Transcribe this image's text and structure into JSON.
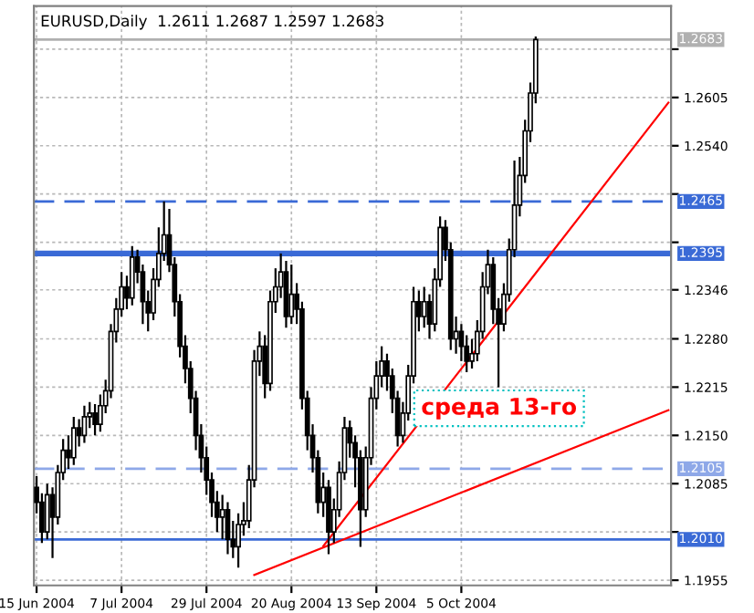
{
  "chart_data": {
    "type": "candlestick",
    "title": "EURUSD,Daily  1.2611 1.2687 1.2597 1.2683",
    "categories": [
      "15 Jun 2004",
      null,
      null,
      null,
      null,
      null,
      null,
      null,
      null,
      null,
      null,
      null,
      null,
      null,
      null,
      null,
      "7 Jul 2004",
      null,
      null,
      null,
      null,
      null,
      null,
      null,
      null,
      null,
      null,
      null,
      null,
      null,
      null,
      null,
      "29 Jul 2004",
      null,
      null,
      null,
      null,
      null,
      null,
      null,
      null,
      null,
      null,
      null,
      null,
      null,
      null,
      null,
      "20 Aug 2004",
      null,
      null,
      null,
      null,
      null,
      null,
      null,
      null,
      null,
      null,
      null,
      null,
      null,
      null,
      null,
      "13 Sep 2004",
      null,
      null,
      null,
      null,
      null,
      null,
      null,
      null,
      null,
      null,
      null,
      null,
      null,
      null,
      null,
      "5 Oct 2004",
      null,
      null,
      null,
      null,
      null,
      null,
      null,
      null,
      null,
      null,
      null,
      null,
      null,
      null,
      null,
      null,
      null,
      null,
      null,
      null,
      null,
      null,
      null,
      null,
      null,
      null,
      null,
      null,
      null,
      null,
      null,
      null,
      null,
      null,
      null,
      null,
      null,
      null,
      null
    ],
    "ohlc": [
      [
        1.208,
        1.2095,
        1.2045,
        1.206
      ],
      [
        1.206,
        1.2072,
        1.2005,
        1.202
      ],
      [
        1.202,
        1.2085,
        1.201,
        1.207
      ],
      [
        1.207,
        1.208,
        1.1985,
        1.204
      ],
      [
        1.204,
        1.211,
        1.203,
        1.21
      ],
      [
        1.21,
        1.2145,
        1.209,
        1.213
      ],
      [
        1.213,
        1.215,
        1.2105,
        1.212
      ],
      [
        1.212,
        1.2175,
        1.211,
        1.216
      ],
      [
        1.216,
        1.2172,
        1.2135,
        1.215
      ],
      [
        1.215,
        1.219,
        1.214,
        1.2175
      ],
      [
        1.2175,
        1.2195,
        1.216,
        1.218
      ],
      [
        1.218,
        1.2192,
        1.215,
        1.2165
      ],
      [
        1.2165,
        1.2205,
        1.2155,
        1.219
      ],
      [
        1.219,
        1.2225,
        1.218,
        1.221
      ],
      [
        1.221,
        1.23,
        1.22,
        1.229
      ],
      [
        1.229,
        1.2335,
        1.2275,
        1.232
      ],
      [
        1.232,
        1.237,
        1.231,
        1.235
      ],
      [
        1.235,
        1.2365,
        1.232,
        1.2335
      ],
      [
        1.2335,
        1.2405,
        1.2325,
        1.239
      ],
      [
        1.239,
        1.24,
        1.2355,
        1.237
      ],
      [
        1.237,
        1.238,
        1.23,
        1.233
      ],
      [
        1.233,
        1.2345,
        1.229,
        1.2315
      ],
      [
        1.2315,
        1.2375,
        1.2305,
        1.236
      ],
      [
        1.236,
        1.243,
        1.235,
        1.2395
      ],
      [
        1.2395,
        1.2465,
        1.2385,
        1.242
      ],
      [
        1.242,
        1.2455,
        1.237,
        1.238
      ],
      [
        1.238,
        1.239,
        1.231,
        1.233
      ],
      [
        1.233,
        1.234,
        1.2255,
        1.227
      ],
      [
        1.227,
        1.2285,
        1.222,
        1.224
      ],
      [
        1.224,
        1.225,
        1.218,
        1.22
      ],
      [
        1.22,
        1.221,
        1.213,
        1.215
      ],
      [
        1.215,
        1.2165,
        1.21,
        1.212
      ],
      [
        1.212,
        1.2135,
        1.207,
        1.209
      ],
      [
        1.209,
        1.21,
        1.204,
        1.206
      ],
      [
        1.206,
        1.2075,
        1.202,
        1.204
      ],
      [
        1.204,
        1.207,
        1.201,
        1.205
      ],
      [
        1.205,
        1.206,
        1.199,
        1.201
      ],
      [
        1.201,
        1.2035,
        1.1985,
        1.2
      ],
      [
        1.2,
        1.2045,
        1.1972,
        1.203
      ],
      [
        1.203,
        1.206,
        1.2015,
        1.2035
      ],
      [
        1.2035,
        1.211,
        1.2025,
        1.209
      ],
      [
        1.209,
        1.2265,
        1.208,
        1.225
      ],
      [
        1.225,
        1.229,
        1.223,
        1.227
      ],
      [
        1.227,
        1.2285,
        1.22,
        1.222
      ],
      [
        1.222,
        1.2345,
        1.221,
        1.233
      ],
      [
        1.233,
        1.2375,
        1.2315,
        1.235
      ],
      [
        1.235,
        1.2395,
        1.2335,
        1.237
      ],
      [
        1.237,
        1.2385,
        1.2295,
        1.231
      ],
      [
        1.231,
        1.238,
        1.23,
        1.234
      ],
      [
        1.234,
        1.2355,
        1.23,
        1.232
      ],
      [
        1.232,
        1.233,
        1.2185,
        1.22
      ],
      [
        1.22,
        1.221,
        1.213,
        1.215
      ],
      [
        1.215,
        1.2165,
        1.21,
        1.212
      ],
      [
        1.212,
        1.213,
        1.2045,
        1.206
      ],
      [
        1.206,
        1.21,
        1.204,
        1.208
      ],
      [
        1.208,
        1.209,
        1.199,
        1.202
      ],
      [
        1.202,
        1.2065,
        1.2005,
        1.205
      ],
      [
        1.205,
        1.2115,
        1.204,
        1.21
      ],
      [
        1.21,
        1.2175,
        1.209,
        1.216
      ],
      [
        1.216,
        1.217,
        1.212,
        1.214
      ],
      [
        1.214,
        1.215,
        1.208,
        1.212
      ],
      [
        1.212,
        1.213,
        1.2,
        1.205
      ],
      [
        1.205,
        1.2135,
        1.204,
        1.212
      ],
      [
        1.212,
        1.2215,
        1.211,
        1.22
      ],
      [
        1.22,
        1.225,
        1.2185,
        1.223
      ],
      [
        1.223,
        1.227,
        1.2215,
        1.225
      ],
      [
        1.225,
        1.226,
        1.221,
        1.223
      ],
      [
        1.223,
        1.224,
        1.218,
        1.22
      ],
      [
        1.22,
        1.221,
        1.2135,
        1.215
      ],
      [
        1.215,
        1.2195,
        1.214,
        1.218
      ],
      [
        1.218,
        1.2245,
        1.217,
        1.223
      ],
      [
        1.223,
        1.235,
        1.222,
        1.233
      ],
      [
        1.233,
        1.2345,
        1.229,
        1.231
      ],
      [
        1.231,
        1.235,
        1.2295,
        1.233
      ],
      [
        1.233,
        1.234,
        1.228,
        1.23
      ],
      [
        1.23,
        1.2375,
        1.229,
        1.236
      ],
      [
        1.236,
        1.2445,
        1.235,
        1.243
      ],
      [
        1.243,
        1.244,
        1.2385,
        1.24
      ],
      [
        1.24,
        1.241,
        1.2265,
        1.228
      ],
      [
        1.228,
        1.231,
        1.226,
        1.229
      ],
      [
        1.229,
        1.23,
        1.225,
        1.227
      ],
      [
        1.227,
        1.2285,
        1.2235,
        1.225
      ],
      [
        1.225,
        1.228,
        1.224,
        1.226
      ],
      [
        1.226,
        1.2305,
        1.225,
        1.229
      ],
      [
        1.229,
        1.237,
        1.228,
        1.235
      ],
      [
        1.235,
        1.24,
        1.234,
        1.238
      ],
      [
        1.238,
        1.239,
        1.23,
        1.232
      ],
      [
        1.232,
        1.2335,
        1.2215,
        1.23
      ],
      [
        1.23,
        1.2355,
        1.229,
        1.234
      ],
      [
        1.234,
        1.2415,
        1.233,
        1.24
      ],
      [
        1.24,
        1.252,
        1.239,
        1.246
      ],
      [
        1.246,
        1.2525,
        1.2445,
        1.25
      ],
      [
        1.25,
        1.2575,
        1.249,
        1.256
      ],
      [
        1.256,
        1.2625,
        1.2545,
        1.2611
      ],
      [
        1.2611,
        1.2687,
        1.2597,
        1.2683
      ],
      null,
      null,
      null,
      null,
      null,
      null,
      null,
      null,
      null,
      null,
      null,
      null,
      null,
      null,
      null,
      null,
      null,
      null,
      null,
      null,
      null,
      null,
      null,
      null,
      null
    ],
    "series": [
      {
        "type": "line",
        "color": "#ff0000",
        "values": [
          null,
          null,
          null,
          null,
          null,
          null,
          null,
          null,
          null,
          null,
          null,
          null,
          null,
          null,
          null,
          null,
          null,
          null,
          null,
          null,
          null,
          null,
          null,
          null,
          null,
          null,
          null,
          null,
          null,
          null,
          null,
          null,
          null,
          null,
          null,
          null,
          null,
          null,
          null,
          null,
          null,
          1.1962,
          null,
          null,
          null,
          null,
          null,
          null,
          null,
          null,
          null,
          null,
          null,
          null,
          null,
          null,
          null,
          null,
          null,
          null,
          null,
          null,
          null,
          null,
          null,
          null,
          null,
          null,
          null,
          null,
          null,
          null,
          null,
          null,
          null,
          null,
          null,
          null,
          null,
          null,
          null,
          null,
          null,
          null,
          null,
          null,
          null,
          null,
          null,
          null,
          null,
          null,
          null,
          null,
          null,
          null,
          null,
          null,
          null,
          null,
          null,
          null,
          null,
          null,
          null,
          null,
          null,
          null,
          null,
          null,
          null,
          null,
          null,
          null,
          null,
          null,
          null,
          null,
          null,
          1.2184
        ]
      },
      {
        "type": "line",
        "color": "#ff0000",
        "values": [
          null,
          null,
          null,
          null,
          null,
          null,
          null,
          null,
          null,
          null,
          null,
          null,
          null,
          null,
          null,
          null,
          null,
          null,
          null,
          null,
          null,
          null,
          null,
          null,
          null,
          null,
          null,
          null,
          null,
          null,
          null,
          null,
          null,
          null,
          null,
          null,
          null,
          null,
          null,
          null,
          null,
          null,
          null,
          null,
          null,
          null,
          null,
          null,
          null,
          null,
          null,
          null,
          null,
          null,
          1.2001,
          null,
          null,
          null,
          null,
          null,
          null,
          null,
          null,
          null,
          null,
          null,
          null,
          null,
          null,
          null,
          null,
          null,
          null,
          null,
          null,
          null,
          null,
          null,
          null,
          null,
          null,
          null,
          null,
          null,
          null,
          null,
          null,
          null,
          null,
          null,
          null,
          null,
          null,
          null,
          null,
          null,
          null,
          null,
          null,
          null,
          null,
          null,
          null,
          null,
          null,
          null,
          null,
          null,
          null,
          null,
          null,
          null,
          null,
          null,
          null,
          null,
          null,
          null,
          null,
          1.2598
        ]
      }
    ],
    "ref_lines": [
      {
        "axis": "y",
        "value": 1.2683,
        "label": "1.2683",
        "color": "#b0b0b0",
        "line_style": "solid"
      },
      {
        "axis": "y",
        "value": 1.2465,
        "label": "1.2465",
        "color": "#3a6ad6",
        "line_style": "dashed"
      },
      {
        "axis": "y",
        "value": 1.2395,
        "label": "1.2395",
        "color": "#3a6ad6",
        "line_style": "solid"
      },
      {
        "axis": "y",
        "value": 1.2105,
        "label": "1.2105",
        "color": "#8ea8e8",
        "line_style": "dashed"
      },
      {
        "axis": "y",
        "value": 1.201,
        "label": "1.2010",
        "color": "#3a6ad6",
        "line_style": "solid"
      }
    ],
    "annotations": [
      {
        "text": "среда 13-го",
        "y": 1.2215
      }
    ],
    "ylim": [
      1.1948,
      1.2728
    ],
    "yticks": [
      {
        "value": 1.1955,
        "label": "1.1955"
      },
      {
        "value": 1.202,
        "label": null
      },
      {
        "value": 1.2085,
        "label": "1.2085"
      },
      {
        "value": 1.215,
        "label": "1.2150"
      },
      {
        "value": 1.2215,
        "label": "1.2215"
      },
      {
        "value": 1.228,
        "label": "1.2280"
      },
      {
        "value": 1.2346,
        "label": "1.2346"
      },
      {
        "value": 1.241,
        "label": null
      },
      {
        "value": 1.2475,
        "label": null
      },
      {
        "value": 1.254,
        "label": "1.2540"
      },
      {
        "value": 1.2605,
        "label": "1.2605"
      },
      {
        "value": 1.267,
        "label": null
      }
    ],
    "grid": true
  }
}
